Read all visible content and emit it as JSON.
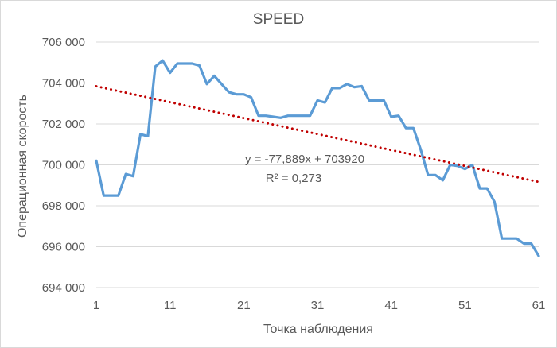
{
  "chart_data": {
    "type": "line",
    "title": "SPEED",
    "xlabel": "Точка наблюдения",
    "ylabel": "Операционная скорость",
    "xlim": [
      1,
      61
    ],
    "ylim": [
      694000,
      706000
    ],
    "x_ticks": [
      1,
      11,
      21,
      31,
      41,
      51,
      61
    ],
    "x_tick_labels": [
      "1",
      "11",
      "21",
      "31",
      "41",
      "51",
      "61"
    ],
    "y_ticks": [
      694000,
      696000,
      698000,
      700000,
      702000,
      704000,
      706000
    ],
    "y_tick_labels": [
      "694 000",
      "696 000",
      "698 000",
      "700 000",
      "702 000",
      "704 000",
      "706 000"
    ],
    "grid": "horizontal",
    "series": [
      {
        "color": "#5B9BD5",
        "x": [
          1,
          2,
          3,
          4,
          5,
          6,
          7,
          8,
          9,
          10,
          11,
          12,
          13,
          14,
          15,
          16,
          17,
          18,
          19,
          20,
          21,
          22,
          23,
          24,
          25,
          26,
          27,
          28,
          29,
          30,
          31,
          32,
          33,
          34,
          35,
          36,
          37,
          38,
          39,
          40,
          41,
          42,
          43,
          44,
          45,
          46,
          47,
          48,
          49,
          50,
          51,
          52,
          53,
          54,
          55,
          56,
          57,
          58,
          59,
          60,
          61
        ],
        "values": [
          700200,
          698500,
          698500,
          698500,
          699550,
          699450,
          701500,
          701400,
          704800,
          705100,
          704500,
          704950,
          704950,
          704950,
          704850,
          703950,
          704350,
          703950,
          703550,
          703450,
          703450,
          703300,
          702400,
          702400,
          702350,
          702300,
          702400,
          702400,
          702400,
          702400,
          703150,
          703050,
          703750,
          703750,
          703950,
          703800,
          703850,
          703150,
          703150,
          703150,
          702350,
          702400,
          701800,
          701800,
          700750,
          699500,
          699500,
          699250,
          700000,
          699950,
          699800,
          700000,
          698850,
          698850,
          698200,
          696400,
          696400,
          696400,
          696150,
          696150,
          695550
        ]
      }
    ],
    "trendline": {
      "type": "linear",
      "slope": -77.889,
      "intercept": 703920,
      "color": "#C00000",
      "style": "dotted",
      "equation_label": "y = -77,889x + 703920",
      "r2_label": "R² = 0,273"
    }
  }
}
